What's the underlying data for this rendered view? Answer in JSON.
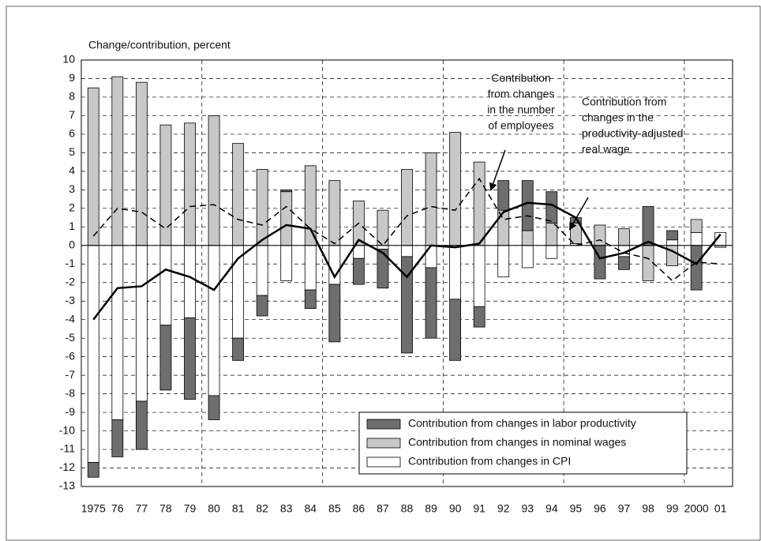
{
  "chart_data": {
    "type": "bar",
    "y_label": "Change/contribution, percent",
    "categories": [
      "1975",
      "76",
      "77",
      "78",
      "79",
      "80",
      "81",
      "82",
      "83",
      "84",
      "85",
      "86",
      "87",
      "88",
      "89",
      "90",
      "91",
      "92",
      "93",
      "94",
      "95",
      "96",
      "97",
      "98",
      "99",
      "2000",
      "01"
    ],
    "series": [
      {
        "name": "Contribution from changes in labor productivity",
        "color": "#6e6e6e",
        "values": [
          -0.8,
          -2.0,
          -2.6,
          -3.5,
          -4.4,
          -1.3,
          -1.2,
          -1.1,
          0.1,
          -1.0,
          -3.1,
          -1.4,
          -2.1,
          -5.2,
          -3.8,
          -3.3,
          -1.1,
          1.6,
          2.7,
          1.7,
          0.3,
          -1.8,
          -0.7,
          2.1,
          0.5,
          -2.4,
          0
        ]
      },
      {
        "name": "Contribution from changes in nominal wages",
        "color": "#c8c8c8",
        "values": [
          8.5,
          9.1,
          8.8,
          6.5,
          6.6,
          7.0,
          5.5,
          4.1,
          2.9,
          4.3,
          3.5,
          2.4,
          1.9,
          4.1,
          5.0,
          6.1,
          4.5,
          1.9,
          0.8,
          1.2,
          1.1,
          1.1,
          0.9,
          -1.9,
          -1.1,
          0.7,
          -0.1
        ]
      },
      {
        "name": "Contribution from changes in CPI",
        "color": "#ffffff",
        "values": [
          -11.7,
          -9.4,
          -8.4,
          -4.3,
          -3.9,
          -8.1,
          -5.0,
          -2.7,
          -1.9,
          -2.4,
          -2.1,
          -0.7,
          -0.2,
          -0.6,
          -1.2,
          -2.9,
          -3.3,
          -1.7,
          -1.2,
          -0.7,
          0.1,
          0,
          -0.6,
          0,
          0.3,
          0.7,
          0.7
        ]
      }
    ],
    "lines": [
      {
        "style": "solid",
        "color": "#000000",
        "values": [
          -4.0,
          -2.3,
          -2.2,
          -1.3,
          -1.7,
          -2.4,
          -0.7,
          0.3,
          1.1,
          0.9,
          -1.7,
          0.3,
          -0.4,
          -1.7,
          0.0,
          -0.1,
          0.1,
          1.8,
          2.3,
          2.2,
          1.5,
          -0.7,
          -0.4,
          0.2,
          -0.3,
          -1.0,
          0.6
        ]
      },
      {
        "style": "dashed",
        "color": "#000000",
        "values": [
          0.5,
          2.0,
          1.8,
          0.9,
          2.1,
          2.2,
          1.4,
          1.1,
          2.1,
          0.9,
          0.1,
          1.2,
          0.0,
          1.6,
          2.1,
          1.9,
          3.6,
          1.4,
          1.6,
          1.3,
          0.0,
          0.3,
          -0.4,
          -0.7,
          -1.9,
          -0.9,
          -1.0
        ]
      }
    ],
    "annotations": [
      {
        "lines": [
          "Contribution",
          "from changes",
          "in the number",
          "of employees"
        ]
      },
      {
        "lines": [
          "Contribution from",
          "changes in the",
          "productivity-adjusted",
          "real wage"
        ]
      }
    ],
    "ylim": [
      -13,
      10
    ],
    "yticks": [
      -13,
      -12,
      -11,
      -10,
      -9,
      -8,
      -7,
      -6,
      -5,
      -4,
      -3,
      -2,
      -1,
      0,
      1,
      2,
      3,
      4,
      5,
      6,
      7,
      8,
      9,
      10
    ],
    "grid": true,
    "legend": "lower right"
  }
}
